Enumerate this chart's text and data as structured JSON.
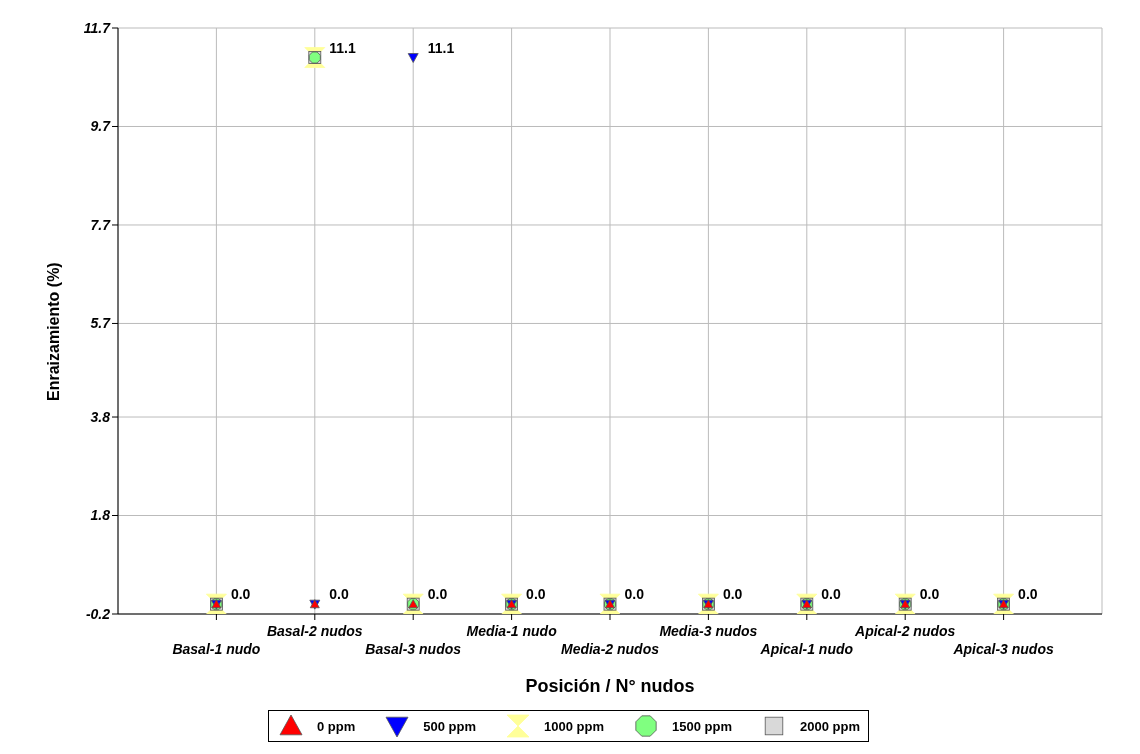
{
  "chart_data": {
    "type": "scatter",
    "xlabel": "Posición / N° nudos",
    "ylabel": "Enraizamiento (%)",
    "categories": [
      "Basal-1 nudo",
      "Basal-2 nudos",
      "Basal-3 nudos",
      "Media-1 nudo",
      "Media-2 nudos",
      "Media-3 nudos",
      "Apical-1 nudo",
      "Apical-2 nudos",
      "Apical-3 nudos"
    ],
    "ylim": [
      -0.2,
      11.7
    ],
    "yticks": [
      -0.2,
      1.8,
      3.8,
      5.7,
      7.7,
      9.7,
      11.7
    ],
    "grid": true,
    "legend": "bottom",
    "series": [
      {
        "name": "0 ppm",
        "color": "#ff0000",
        "marker": "triangle",
        "values": [
          0,
          0,
          0,
          0,
          0,
          0,
          0,
          0,
          0
        ],
        "value_labels": [
          null,
          "0.0",
          null,
          null,
          null,
          null,
          null,
          null,
          null
        ]
      },
      {
        "name": "500 ppm",
        "color": "#0000ff",
        "marker": "triangle-down",
        "values": [
          0,
          0,
          11.1,
          0,
          0,
          0,
          0,
          0,
          0
        ],
        "value_labels": [
          null,
          null,
          "11.1",
          null,
          null,
          null,
          null,
          null,
          null
        ]
      },
      {
        "name": "1000 ppm",
        "color": "#ffff99",
        "values": [
          0,
          11.1,
          0,
          0,
          0,
          0,
          0,
          0,
          0
        ]
      },
      {
        "name": "1500 ppm",
        "color": "#80ff80",
        "marker": "circle",
        "values": [
          0,
          11.1,
          0,
          0,
          0,
          0,
          0,
          0,
          0
        ]
      },
      {
        "name": "2000 ppm",
        "color": "#d9d9d9",
        "marker": "square",
        "values": [
          0,
          11.1,
          0,
          0,
          0,
          0,
          0,
          0,
          0
        ],
        "value_labels": [
          "0.0",
          "11.1",
          "0.0",
          "0.0",
          "0.0",
          "0.0",
          "0.0",
          "0.0",
          "0.0"
        ]
      }
    ]
  }
}
